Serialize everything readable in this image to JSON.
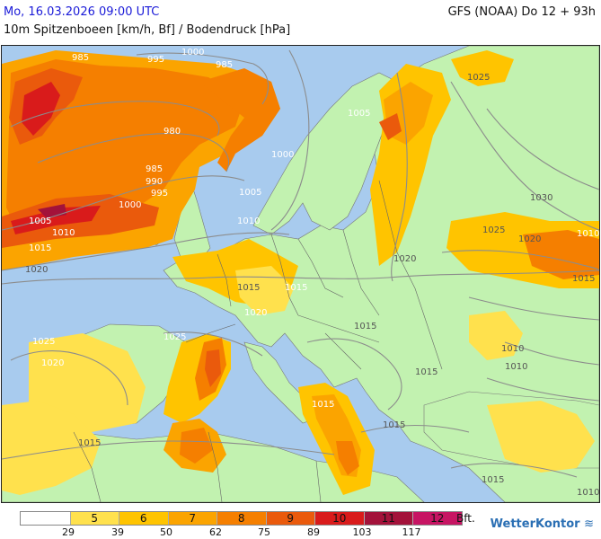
{
  "header": {
    "date_time": "Mo, 16.03.2026 09:00 UTC",
    "model_run": "GFS (NOAA) Do 12 + 93h",
    "parameter": "10m Spitzenboeen [km/h, Bf] / Bodendruck [hPa]"
  },
  "map": {
    "pressure_labels": [
      {
        "text": "985"
      },
      {
        "text": "995"
      },
      {
        "text": "1000"
      },
      {
        "text": "985"
      },
      {
        "text": "980"
      },
      {
        "text": "985"
      },
      {
        "text": "990"
      },
      {
        "text": "995"
      },
      {
        "text": "1000"
      },
      {
        "text": "1005"
      },
      {
        "text": "1010"
      },
      {
        "text": "1015"
      },
      {
        "text": "1020"
      },
      {
        "text": "1000"
      },
      {
        "text": "1005"
      },
      {
        "text": "1010"
      },
      {
        "text": "1005"
      },
      {
        "text": "1025"
      },
      {
        "text": "1030"
      },
      {
        "text": "1025"
      },
      {
        "text": "1020"
      },
      {
        "text": "1015"
      },
      {
        "text": "1020"
      },
      {
        "text": "1010"
      },
      {
        "text": "1015"
      },
      {
        "text": "1025"
      },
      {
        "text": "1025"
      },
      {
        "text": "1020"
      },
      {
        "text": "1015"
      },
      {
        "text": "1020"
      },
      {
        "text": "1015"
      },
      {
        "text": "1015"
      },
      {
        "text": "1015"
      },
      {
        "text": "1015"
      },
      {
        "text": "1010"
      },
      {
        "text": "1010"
      },
      {
        "text": "1015"
      },
      {
        "text": "1010"
      },
      {
        "text": "1015"
      }
    ]
  },
  "legend": {
    "unit": "Bft.",
    "bft": [
      "",
      "5",
      "6",
      "7",
      "8",
      "9",
      "10",
      "11",
      "12"
    ],
    "kmh": [
      "29",
      "39",
      "50",
      "62",
      "75",
      "89",
      "103",
      "117"
    ],
    "colors": [
      "#ffffff",
      "#ffe14d",
      "#ffc400",
      "#fba400",
      "#f57f00",
      "#ea5a0c",
      "#d91b1b",
      "#a3123a",
      "#c71463"
    ]
  },
  "brand": {
    "name": "WetterKontor",
    "glyph": "≋"
  },
  "colors": {
    "sea": "#a8cbee",
    "land": "#c2f2b0",
    "isobar": "#8c8c8c",
    "border": "#666666"
  }
}
